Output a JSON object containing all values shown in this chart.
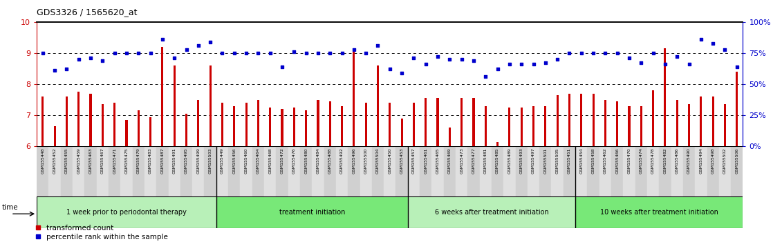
{
  "title": "GDS3326 / 1565620_at",
  "samples": [
    "GSM155448",
    "GSM155452",
    "GSM155455",
    "GSM155459",
    "GSM155463",
    "GSM155467",
    "GSM155471",
    "GSM155475",
    "GSM155479",
    "GSM155483",
    "GSM155487",
    "GSM155491",
    "GSM155495",
    "GSM155499",
    "GSM155503",
    "GSM155449",
    "GSM155456",
    "GSM155460",
    "GSM155464",
    "GSM155468",
    "GSM155472",
    "GSM155476",
    "GSM155480",
    "GSM155484",
    "GSM155488",
    "GSM155492",
    "GSM155496",
    "GSM155500",
    "GSM155504",
    "GSM155450",
    "GSM155453",
    "GSM155457",
    "GSM155461",
    "GSM155465",
    "GSM155469",
    "GSM155473",
    "GSM155477",
    "GSM155481",
    "GSM155485",
    "GSM155489",
    "GSM155493",
    "GSM155497",
    "GSM155501",
    "GSM155505",
    "GSM155451",
    "GSM155454",
    "GSM155458",
    "GSM155462",
    "GSM155466",
    "GSM155470",
    "GSM155474",
    "GSM155478",
    "GSM155482",
    "GSM155486",
    "GSM155490",
    "GSM155494",
    "GSM155498",
    "GSM155502",
    "GSM155506"
  ],
  "red_values": [
    7.6,
    6.65,
    7.6,
    7.75,
    7.7,
    7.35,
    7.4,
    6.85,
    7.15,
    6.95,
    9.2,
    8.6,
    7.05,
    7.5,
    8.6,
    7.4,
    7.3,
    7.4,
    7.5,
    7.25,
    7.2,
    7.25,
    7.15,
    7.5,
    7.45,
    7.3,
    9.1,
    7.4,
    8.6,
    7.4,
    6.9,
    7.4,
    7.55,
    7.55,
    6.6,
    7.55,
    7.55,
    7.3,
    6.15,
    7.25,
    7.25,
    7.3,
    7.3,
    7.65,
    7.7,
    7.7,
    7.7,
    7.5,
    7.45,
    7.3,
    7.3,
    7.8,
    9.15,
    7.5,
    7.35,
    7.6,
    7.6,
    7.35,
    8.4
  ],
  "blue_values": [
    9.0,
    8.45,
    8.5,
    8.8,
    8.85,
    8.75,
    9.0,
    9.0,
    9.0,
    9.0,
    9.45,
    8.85,
    9.1,
    9.25,
    9.35,
    9.0,
    9.0,
    9.0,
    9.0,
    9.0,
    8.55,
    9.05,
    9.0,
    9.0,
    9.0,
    9.0,
    9.1,
    9.0,
    9.25,
    8.5,
    8.35,
    8.85,
    8.65,
    8.9,
    8.8,
    8.8,
    8.75,
    8.25,
    8.5,
    8.65,
    8.65,
    8.65,
    8.7,
    8.8,
    9.0,
    9.0,
    9.0,
    9.0,
    9.0,
    8.85,
    8.7,
    9.0,
    8.65,
    8.9,
    8.65,
    9.45,
    9.3,
    9.1,
    8.55
  ],
  "groups": [
    {
      "label": "1 week prior to periodontal therapy",
      "start": 0,
      "end": 15,
      "color": "#b8f0b8"
    },
    {
      "label": "treatment initiation",
      "start": 15,
      "end": 31,
      "color": "#78e878"
    },
    {
      "label": "6 weeks after treatment initiation",
      "start": 31,
      "end": 45,
      "color": "#b8f0b8"
    },
    {
      "label": "10 weeks after treatment initiation",
      "start": 45,
      "end": 59,
      "color": "#78e878"
    }
  ],
  "ylim_left": [
    6,
    10
  ],
  "ylim_right": [
    0,
    100
  ],
  "yticks_left": [
    6,
    7,
    8,
    9,
    10
  ],
  "yticks_right": [
    0,
    25,
    50,
    75,
    100
  ],
  "bar_color": "#cc0000",
  "dot_color": "#0000cc",
  "hline_color": "black",
  "background_color": "#ffffff",
  "label_bg_even": "#d0d0d0",
  "label_bg_odd": "#e0e0e0"
}
